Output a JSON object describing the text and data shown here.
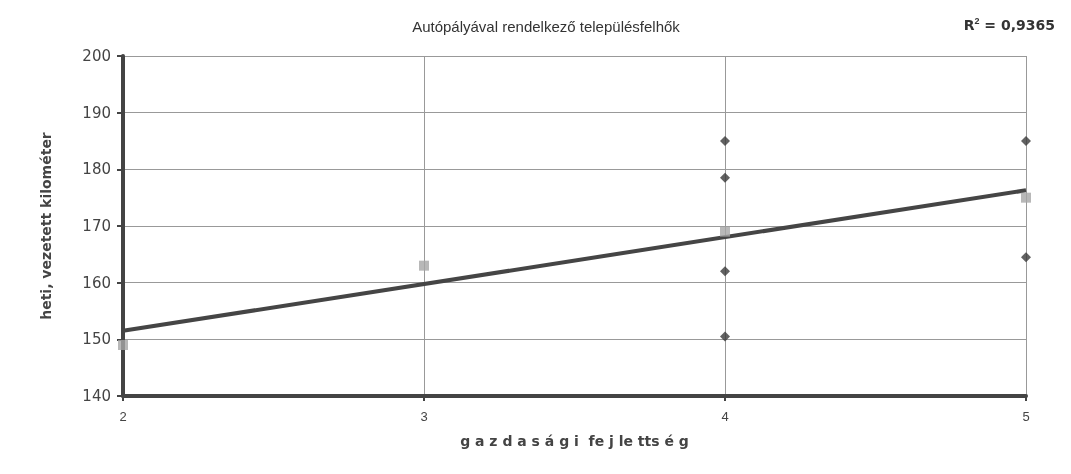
{
  "chart_data": {
    "type": "scatter",
    "title": "Autópályával rendelkező településfelhők",
    "xlabel": "g a z d a s á g i  fe j le tts é g",
    "ylabel": "heti, vezetett kilométer",
    "annotations": [
      "R$^{2}$ = 0,9365"
    ],
    "xlim": [
      2,
      5
    ],
    "xticks": [
      2,
      3,
      4,
      5
    ],
    "ylim": [
      140,
      200
    ],
    "yticks": [
      140,
      150,
      160,
      170,
      180,
      190,
      200
    ],
    "grid": true,
    "series": [
      {
        "color": "#3a3a3a",
        "marker": "diamond",
        "x": [
          4,
          4,
          4,
          4,
          5,
          5
        ],
        "values": [
          185,
          178.5,
          162,
          150.5,
          185,
          164.5
        ]
      },
      {
        "color": "#a6a6a6",
        "marker": "square",
        "x": [
          2,
          3,
          4,
          5
        ],
        "values": [
          149,
          163,
          169,
          175
        ]
      },
      {
        "type": "line",
        "color": "#454545",
        "marker": "none",
        "line_style": "solid",
        "x": [
          2,
          5
        ],
        "values": [
          151.5,
          176.3
        ]
      }
    ]
  }
}
